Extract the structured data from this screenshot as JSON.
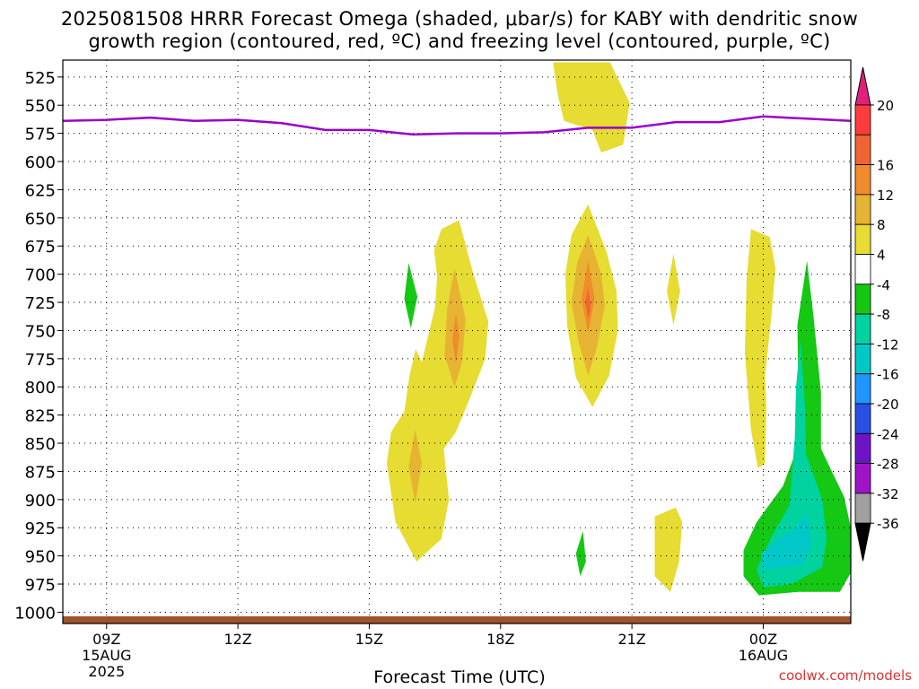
{
  "title_line1": "2025081508 HRRR Forecast Omega (shaded, μbar/s) for KABY with dendritic snow",
  "title_line2": "growth region (contoured, red, ºC) and freezing level (contoured, purple, ºC)",
  "credit": "coolwx.com/models",
  "chart_data": {
    "type": "heatmap",
    "title": "2025081508 HRRR Forecast Omega (shaded, μbar/s) for KABY with dendritic snow growth region (contoured, red, ºC) and freezing level (contoured, purple, ºC)",
    "xlabel": "Forecast Time (UTC)",
    "ylabel": "",
    "x_ticks": [
      {
        "hour": 9,
        "label": "09Z",
        "sub1": "15AUG",
        "sub2": "2025"
      },
      {
        "hour": 12,
        "label": "12Z",
        "sub1": "",
        "sub2": ""
      },
      {
        "hour": 15,
        "label": "15Z",
        "sub1": "",
        "sub2": ""
      },
      {
        "hour": 18,
        "label": "18Z",
        "sub1": "",
        "sub2": ""
      },
      {
        "hour": 21,
        "label": "21Z",
        "sub1": "",
        "sub2": ""
      },
      {
        "hour": 24,
        "label": "00Z",
        "sub1": "16AUG",
        "sub2": ""
      }
    ],
    "x_range_hours": [
      8,
      26
    ],
    "y_levels_hpa": [
      525,
      550,
      575,
      600,
      625,
      650,
      675,
      700,
      725,
      750,
      775,
      800,
      825,
      850,
      875,
      900,
      925,
      950,
      975,
      1000
    ],
    "y_range_hpa": [
      510,
      1010
    ],
    "grid": true,
    "colorbar": {
      "labels": [
        "20",
        "16",
        "12",
        "8",
        "4",
        "-4",
        "-8",
        "-12",
        "-16",
        "-20",
        "-24",
        "-28",
        "-32",
        "-36"
      ],
      "colors": [
        "#ff3c3c",
        "#f06432",
        "#f08c2a",
        "#e6b432",
        "#e6dc32",
        "#ffffff",
        "#14c814",
        "#00d2a0",
        "#00c8c8",
        "#1e96ff",
        "#2850e6",
        "#6e14c8",
        "#a014c8",
        "#a0a0a0"
      ],
      "top_arrow_color": "#e0207a",
      "bottom_arrow_color": "#000000"
    },
    "freezing_level_hpa": [
      [
        8,
        564
      ],
      [
        9,
        563
      ],
      [
        10,
        561
      ],
      [
        11,
        564
      ],
      [
        12,
        563
      ],
      [
        13,
        566
      ],
      [
        14,
        572
      ],
      [
        15,
        572
      ],
      [
        16,
        576
      ],
      [
        17,
        575
      ],
      [
        18,
        575
      ],
      [
        19,
        574
      ],
      [
        20,
        570
      ],
      [
        21,
        570
      ],
      [
        22,
        565
      ],
      [
        23,
        565
      ],
      [
        24,
        560
      ],
      [
        25,
        562
      ],
      [
        26,
        564
      ]
    ],
    "omega_regions": [
      {
        "category": "4",
        "points": [
          [
            23.72,
            660
          ],
          [
            24.15,
            667
          ],
          [
            24.28,
            695
          ],
          [
            24.18,
            740
          ],
          [
            24.04,
            790
          ],
          [
            24.07,
            818
          ],
          [
            24.04,
            868
          ],
          [
            23.88,
            872
          ],
          [
            23.72,
            838
          ],
          [
            23.58,
            770
          ],
          [
            23.62,
            705
          ]
        ]
      },
      {
        "category": "4",
        "points": [
          [
            21.95,
            682
          ],
          [
            22.1,
            715
          ],
          [
            21.95,
            745
          ],
          [
            21.8,
            715
          ]
        ]
      },
      {
        "category": "4",
        "points": [
          [
            21.52,
            915
          ],
          [
            22.0,
            907
          ],
          [
            22.15,
            920
          ],
          [
            22.08,
            955
          ],
          [
            21.88,
            982
          ],
          [
            21.52,
            968
          ]
        ]
      },
      {
        "category": "4",
        "points": [
          [
            20.0,
            638
          ],
          [
            20.42,
            680
          ],
          [
            20.65,
            715
          ],
          [
            20.68,
            750
          ],
          [
            20.48,
            790
          ],
          [
            20.1,
            818
          ],
          [
            19.72,
            792
          ],
          [
            19.52,
            745
          ],
          [
            19.48,
            700
          ],
          [
            19.62,
            665
          ]
        ]
      },
      {
        "category": "8",
        "points": [
          [
            20.0,
            665
          ],
          [
            20.3,
            700
          ],
          [
            20.38,
            728
          ],
          [
            20.2,
            765
          ],
          [
            20.0,
            790
          ],
          [
            19.78,
            760
          ],
          [
            19.62,
            725
          ],
          [
            19.75,
            690
          ]
        ]
      },
      {
        "category": "12",
        "points": [
          [
            20.0,
            688
          ],
          [
            20.15,
            722
          ],
          [
            20.0,
            752
          ],
          [
            19.85,
            722
          ]
        ]
      },
      {
        "category": "16",
        "points": [
          [
            20.0,
            712
          ],
          [
            20.06,
            730
          ],
          [
            20.0,
            740
          ],
          [
            19.94,
            725
          ]
        ]
      },
      {
        "category": "4",
        "points": [
          [
            19.2,
            512
          ],
          [
            20.5,
            512
          ],
          [
            20.95,
            548
          ],
          [
            20.8,
            585
          ],
          [
            20.3,
            592
          ],
          [
            20.1,
            572
          ],
          [
            19.45,
            564
          ],
          [
            19.3,
            540
          ]
        ]
      },
      {
        "category": "4",
        "points": [
          [
            17.05,
            652
          ],
          [
            17.38,
            700
          ],
          [
            17.72,
            742
          ],
          [
            17.65,
            775
          ],
          [
            17.3,
            810
          ],
          [
            16.98,
            840
          ],
          [
            16.7,
            855
          ],
          [
            16.82,
            900
          ],
          [
            16.65,
            935
          ],
          [
            16.08,
            955
          ],
          [
            15.6,
            920
          ],
          [
            15.4,
            868
          ],
          [
            15.5,
            840
          ],
          [
            15.8,
            822
          ],
          [
            15.92,
            790
          ],
          [
            16.25,
            735
          ],
          [
            16.4,
            688
          ],
          [
            16.65,
            660
          ]
        ]
      },
      {
        "category": "8",
        "points": [
          [
            16.95,
            695
          ],
          [
            17.2,
            740
          ],
          [
            17.12,
            778
          ],
          [
            16.95,
            800
          ],
          [
            16.72,
            772
          ],
          [
            16.78,
            730
          ]
        ]
      },
      {
        "category": "12",
        "points": [
          [
            16.98,
            735
          ],
          [
            17.06,
            755
          ],
          [
            16.98,
            780
          ],
          [
            16.9,
            758
          ]
        ]
      },
      {
        "category": "8",
        "points": [
          [
            16.05,
            838
          ],
          [
            16.2,
            868
          ],
          [
            16.05,
            903
          ],
          [
            15.9,
            870
          ]
        ]
      },
      {
        "category": "-4",
        "points": [
          [
            16.1,
            640
          ],
          [
            16.45,
            668
          ],
          [
            16.55,
            702
          ],
          [
            16.5,
            730
          ],
          [
            16.2,
            778
          ],
          [
            15.92,
            755
          ],
          [
            15.62,
            725
          ],
          [
            15.5,
            700
          ],
          [
            15.58,
            672
          ]
        ]
      },
      {
        "category": "-8",
        "points": [
          [
            15.9,
            690
          ],
          [
            16.1,
            720
          ],
          [
            15.95,
            748
          ],
          [
            15.8,
            722
          ]
        ]
      },
      {
        "category": "-4",
        "points": [
          [
            20.1,
            828
          ],
          [
            20.38,
            868
          ],
          [
            20.48,
            920
          ],
          [
            20.45,
            965
          ],
          [
            20.22,
            990
          ],
          [
            19.75,
            975
          ],
          [
            19.35,
            958
          ],
          [
            18.95,
            950
          ],
          [
            18.78,
            942
          ],
          [
            18.88,
            925
          ],
          [
            19.05,
            900
          ],
          [
            19.45,
            872
          ],
          [
            19.72,
            850
          ]
        ]
      },
      {
        "category": "-8",
        "points": [
          [
            19.88,
            928
          ],
          [
            19.95,
            955
          ],
          [
            19.82,
            968
          ],
          [
            19.72,
            948
          ]
        ]
      },
      {
        "category": "-4",
        "points": [
          [
            25.35,
            512
          ],
          [
            26.0,
            512
          ],
          [
            26.0,
            582
          ],
          [
            25.7,
            612
          ],
          [
            25.55,
            655
          ],
          [
            25.6,
            710
          ],
          [
            25.8,
            762
          ],
          [
            25.92,
            805
          ],
          [
            26.0,
            822
          ],
          [
            26.0,
            992
          ],
          [
            23.25,
            992
          ],
          [
            23.3,
            942
          ],
          [
            23.55,
            915
          ],
          [
            24.15,
            880
          ],
          [
            24.72,
            830
          ],
          [
            24.75,
            760
          ],
          [
            24.78,
            700
          ],
          [
            24.72,
            640
          ],
          [
            24.88,
            590
          ],
          [
            25.05,
            545
          ]
        ]
      },
      {
        "category": "-8",
        "points": [
          [
            25.0,
            688
          ],
          [
            25.15,
            738
          ],
          [
            25.32,
            805
          ],
          [
            25.32,
            855
          ],
          [
            25.85,
            898
          ],
          [
            26.0,
            925
          ],
          [
            26.0,
            965
          ],
          [
            25.75,
            982
          ],
          [
            24.8,
            982
          ],
          [
            23.9,
            985
          ],
          [
            23.55,
            968
          ],
          [
            23.55,
            945
          ],
          [
            23.85,
            920
          ],
          [
            24.45,
            888
          ],
          [
            24.82,
            850
          ],
          [
            24.78,
            745
          ]
        ]
      },
      {
        "category": "-12",
        "points": [
          [
            24.85,
            758
          ],
          [
            24.95,
            815
          ],
          [
            24.98,
            860
          ],
          [
            25.35,
            900
          ],
          [
            25.45,
            935
          ],
          [
            25.35,
            960
          ],
          [
            24.65,
            975
          ],
          [
            24.0,
            978
          ],
          [
            23.85,
            962
          ],
          [
            24.2,
            932
          ],
          [
            24.6,
            905
          ],
          [
            24.72,
            845
          ],
          [
            24.75,
            800
          ]
        ]
      },
      {
        "category": "-16",
        "points": [
          [
            25.0,
            912
          ],
          [
            25.1,
            940
          ],
          [
            24.9,
            958
          ],
          [
            24.0,
            962
          ],
          [
            23.95,
            948
          ],
          [
            24.35,
            935
          ],
          [
            24.75,
            925
          ]
        ]
      }
    ]
  }
}
